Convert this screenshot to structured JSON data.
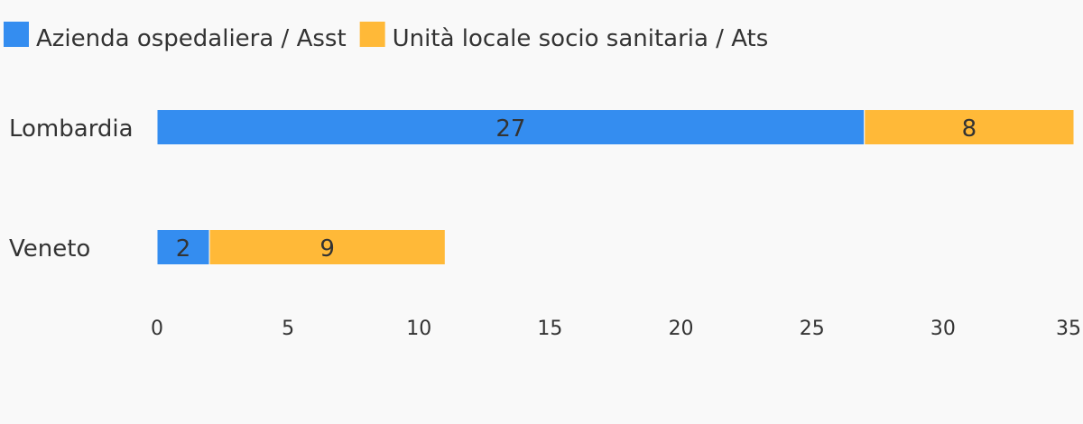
{
  "chart_data": {
    "type": "bar",
    "orientation": "horizontal",
    "stacked": true,
    "title": "",
    "xlabel": "",
    "ylabel": "",
    "categories": [
      "Lombardia",
      "Veneto"
    ],
    "series": [
      {
        "name": "Azienda ospedaliera / Asst",
        "color": "#348df0",
        "values": [
          27,
          2
        ]
      },
      {
        "name": "Unità locale socio sanitaria / Ats",
        "color": "#ffb938",
        "values": [
          8,
          9
        ]
      }
    ],
    "xlim": [
      0,
      35
    ],
    "ticks": [
      0,
      5,
      10,
      15,
      20,
      25,
      30,
      35
    ],
    "grid": false,
    "legend": "top-left",
    "background": "#f9f9f9"
  }
}
